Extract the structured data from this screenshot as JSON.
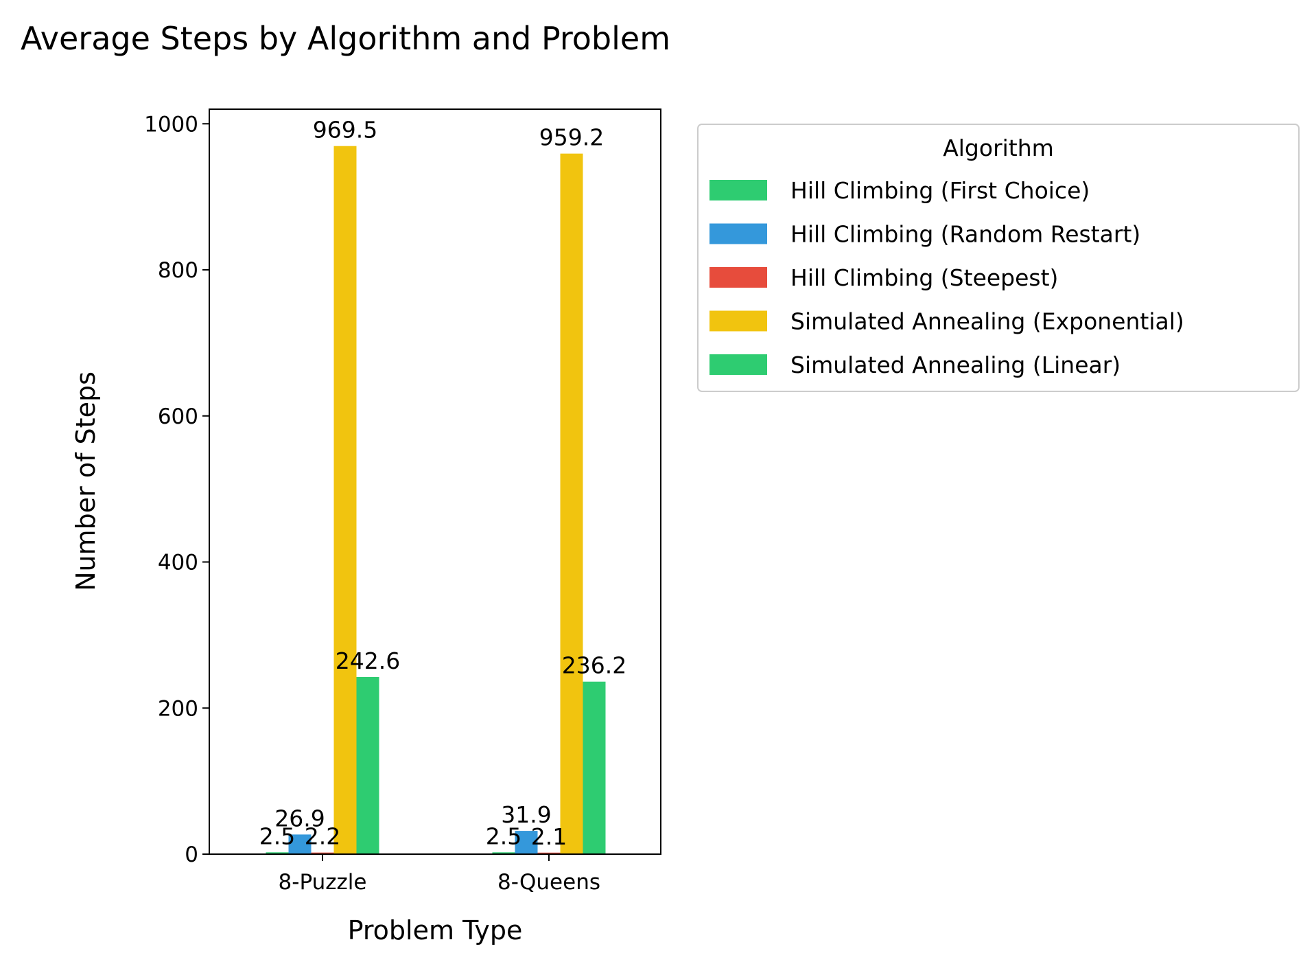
{
  "chart_data": {
    "type": "bar",
    "title": "Average Steps by Algorithm and Problem",
    "xlabel": "Problem Type",
    "ylabel": "Number of Steps",
    "categories": [
      "8-Puzzle",
      "8-Queens"
    ],
    "ylim": [
      0,
      1020
    ],
    "yticks": [
      0,
      200,
      400,
      600,
      800,
      1000
    ],
    "grid": false,
    "legend": {
      "title": "Algorithm",
      "placement": "outside-right-top"
    },
    "series": [
      {
        "name": "Hill Climbing (First Choice)",
        "color": "#2ecc71",
        "values": [
          2.5,
          2.5
        ]
      },
      {
        "name": "Hill Climbing (Random Restart)",
        "color": "#3498db",
        "values": [
          26.9,
          31.9
        ]
      },
      {
        "name": "Hill Climbing (Steepest)",
        "color": "#e74c3c",
        "values": [
          2.2,
          2.1
        ]
      },
      {
        "name": "Simulated Annealing (Exponential)",
        "color": "#f1c40f",
        "values": [
          969.5,
          959.2
        ]
      },
      {
        "name": "Simulated Annealing (Linear)",
        "color": "#2ecc71",
        "values": [
          242.6,
          236.2
        ]
      }
    ],
    "data_labels": [
      [
        "2.5",
        "26.9",
        "2.2",
        "969.5",
        "242.6"
      ],
      [
        "2.5",
        "31.9",
        "2.1",
        "959.2",
        "236.2"
      ]
    ]
  }
}
